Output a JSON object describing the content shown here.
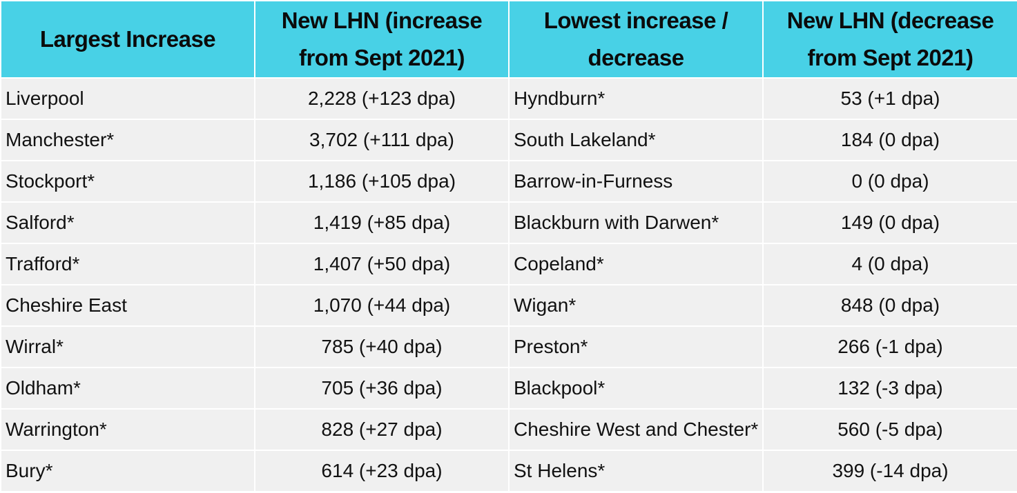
{
  "table": {
    "headers": [
      "Largest Increase",
      "New LHN (increase from Sept 2021)",
      "Lowest increase / decrease",
      "New LHN (decrease from Sept 2021)"
    ],
    "rows": [
      [
        "Liverpool",
        "2,228 (+123 dpa)",
        "Hyndburn*",
        "53 (+1 dpa)"
      ],
      [
        "Manchester*",
        "3,702 (+111 dpa)",
        "South Lakeland*",
        "184 (0 dpa)"
      ],
      [
        "Stockport*",
        "1,186 (+105 dpa)",
        "Barrow-in-Furness",
        "0 (0 dpa)"
      ],
      [
        "Salford*",
        "1,419 (+85 dpa)",
        "Blackburn with Darwen*",
        "149 (0 dpa)"
      ],
      [
        "Trafford*",
        "1,407 (+50 dpa)",
        "Copeland*",
        "4 (0 dpa)"
      ],
      [
        "Cheshire East",
        "1,070 (+44 dpa)",
        "Wigan*",
        "848 (0 dpa)"
      ],
      [
        "Wirral*",
        "785 (+40 dpa)",
        "Preston*",
        "266 (-1 dpa)"
      ],
      [
        "Oldham*",
        "705 (+36 dpa)",
        "Blackpool*",
        "132 (-3 dpa)"
      ],
      [
        "Warrington*",
        "828 (+27 dpa)",
        "Cheshire West and Chester*",
        "560 (-5 dpa)"
      ],
      [
        "Bury*",
        "614 (+23 dpa)",
        "St Helens*",
        "399 (-14 dpa)"
      ]
    ]
  },
  "colors": {
    "header_bg": "#48d1e6",
    "row_bg": "#f0f0f0",
    "border": "#ffffff"
  }
}
